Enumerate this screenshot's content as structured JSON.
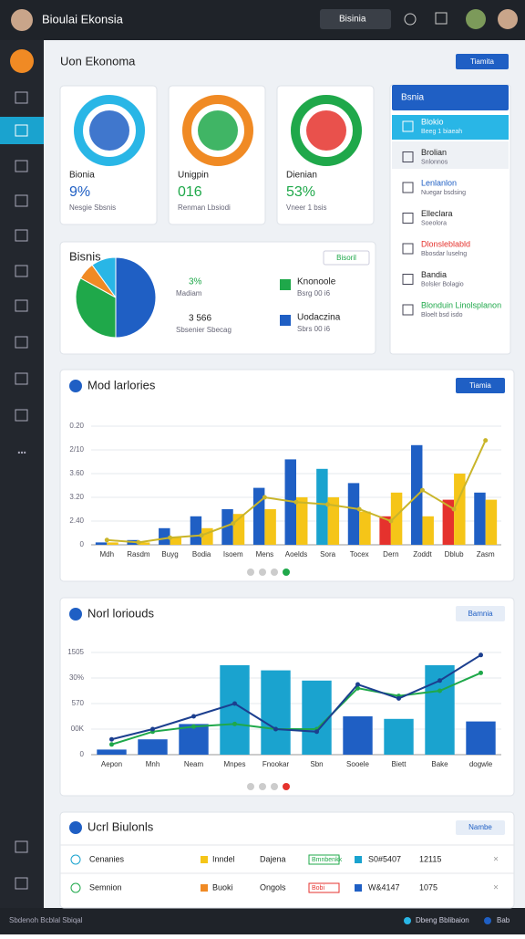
{
  "top_bar": {
    "title": "Bioulai Ekonsia",
    "dropdown": "Bisinia"
  },
  "header": {
    "title": "Uon Ekonoma",
    "button": "Tiamita"
  },
  "kpi_cards": [
    {
      "label": "Bionia",
      "value": "9%",
      "note": "Nesgie Sbsnis"
    },
    {
      "label": "Unigpin",
      "value": "016",
      "note": "Renman Lbsiodi"
    },
    {
      "label": "Dienian",
      "value": "53%",
      "note": "Vneer 1 bsis"
    }
  ],
  "side_panel": {
    "title": "Bsnia",
    "items": [
      {
        "title": "Blokio",
        "subtitle": "Beeg 1 biaeah"
      },
      {
        "title": "Brolian",
        "subtitle": "Snlonnos"
      },
      {
        "title": "Lenlanlon",
        "subtitle": "Nuegar bsdsing"
      },
      {
        "title": "Elleclara",
        "subtitle": "Soeolora"
      },
      {
        "title": "Dlonsleblabld",
        "subtitle": "Bbosdar luselng"
      },
      {
        "title": "Bandia",
        "subtitle": "Bolsler Bolagio"
      },
      {
        "title": "Blonduin Linolsplanon",
        "subtitle": "Bloelt bsd isdo"
      }
    ]
  },
  "bisnis_card": {
    "title": "Bisnis",
    "dropdown": "Bisoril",
    "stats": [
      {
        "value": "3%",
        "label": "Madiam"
      },
      {
        "value": "3 566",
        "label": "Sbsenier Sbecag"
      },
      {
        "value": "Knonoole",
        "label": "Bsrg 00 i6"
      },
      {
        "value": "Uodaczina",
        "label": "Sbrs 00 i6"
      }
    ]
  },
  "chart_data": [
    {
      "type": "pie",
      "values": [
        50,
        33,
        7,
        10
      ],
      "colors": [
        "#1f5fc4",
        "#1fa84a",
        "#f08a24",
        "#29b6e6"
      ]
    },
    {
      "type": "bar",
      "title": "Mod larlories",
      "button": "Tiamia",
      "categories": [
        "Mdh",
        "Rasdm",
        "Buyg",
        "Bodia",
        "Isoem",
        "Mens",
        "Aoelds",
        "Sora",
        "Tocex",
        "Dern",
        "Zoddt",
        "Dblub",
        "Zasm"
      ],
      "ylim": [
        0,
        5
      ],
      "yticks": [
        0,
        {
          "value": 1,
          "label": "2.40"
        },
        {
          "value": 2,
          "label": "3.20"
        },
        {
          "value": 3,
          "label": "3.60"
        },
        {
          "value": 4,
          "label": "2/10"
        },
        {
          "value": 5,
          "label": "0.20"
        }
      ],
      "grid": true,
      "series": [
        {
          "type": "bar",
          "colors": [
            "#1f5fc4",
            "#1f5fc4",
            "#1f5fc4",
            "#1f5fc4",
            "#1f5fc4",
            "#1f5fc4",
            "#1f5fc4",
            "#1aa3cf",
            "#1f5fc4",
            "#e5322d",
            "#1f5fc4",
            "#e5322d",
            "#1f5fc4"
          ],
          "values": [
            0.1,
            0.2,
            0.7,
            1.2,
            1.5,
            2.4,
            3.6,
            3.2,
            2.6,
            1.2,
            4.2,
            1.9,
            2.2
          ]
        },
        {
          "type": "bar",
          "color": "#f5c518",
          "values": [
            0.1,
            0.1,
            0.3,
            0.7,
            1.3,
            1.5,
            2.0,
            2.0,
            1.4,
            2.2,
            1.2,
            3.0,
            1.9
          ]
        },
        {
          "type": "line",
          "color": "#c9b52a",
          "values": [
            0.2,
            0.1,
            0.3,
            0.4,
            0.9,
            2.0,
            1.8,
            1.7,
            1.5,
            1.0,
            2.3,
            1.5,
            4.4
          ]
        }
      ]
    },
    {
      "type": "bar",
      "title": "Norl loriouds",
      "button": "Bamnia",
      "categories": [
        "Aepon",
        "Mnh",
        "Neam",
        "Mnpes",
        "Fnookar",
        "Sbn",
        "Sooele",
        "Biett",
        "Bake",
        "dogwle"
      ],
      "ylim": [
        0,
        4
      ],
      "yticks": [
        0,
        {
          "value": 1,
          "label": "00K"
        },
        {
          "value": 2,
          "label": "570"
        },
        {
          "value": 3,
          "label": "30%"
        },
        {
          "value": 4,
          "label": "1505"
        }
      ],
      "grid": true,
      "series": [
        {
          "type": "bar",
          "colors": [
            "#1f5fc4",
            "#1f5fc4",
            "#1f5fc4",
            "#1aa3cf",
            "#1aa3cf",
            "#1aa3cf",
            "#1f5fc4",
            "#1aa3cf",
            "#1aa3cf",
            "#1f5fc4"
          ],
          "values": [
            0.2,
            0.6,
            1.2,
            3.5,
            3.3,
            2.9,
            1.5,
            1.4,
            3.5,
            1.3
          ]
        },
        {
          "type": "line",
          "color": "#1fa84a",
          "values": [
            0.4,
            0.9,
            1.1,
            1.2,
            1.0,
            1.0,
            2.6,
            2.3,
            2.5,
            3.2
          ]
        },
        {
          "type": "line",
          "color": "#1c3f8f",
          "values": [
            0.6,
            1.0,
            1.5,
            2.0,
            1.0,
            0.9,
            2.75,
            2.2,
            2.9,
            3.9
          ]
        }
      ]
    }
  ],
  "table": {
    "title": "Ucrl Biulonls",
    "button": "Nambe",
    "rows": [
      [
        "Cenanies",
        "Inndel",
        "Dajena",
        "Bmnbenkk",
        "S0#5407",
        "12115"
      ],
      [
        "Semnion",
        "Buoki",
        "Ongols",
        "Bobi",
        "W&4147",
        "1075"
      ]
    ]
  },
  "footer": {
    "left": "Sbdenoh Bcblal Sbiqal",
    "link": "Dbeng Bblibaion",
    "right": "Bab"
  }
}
